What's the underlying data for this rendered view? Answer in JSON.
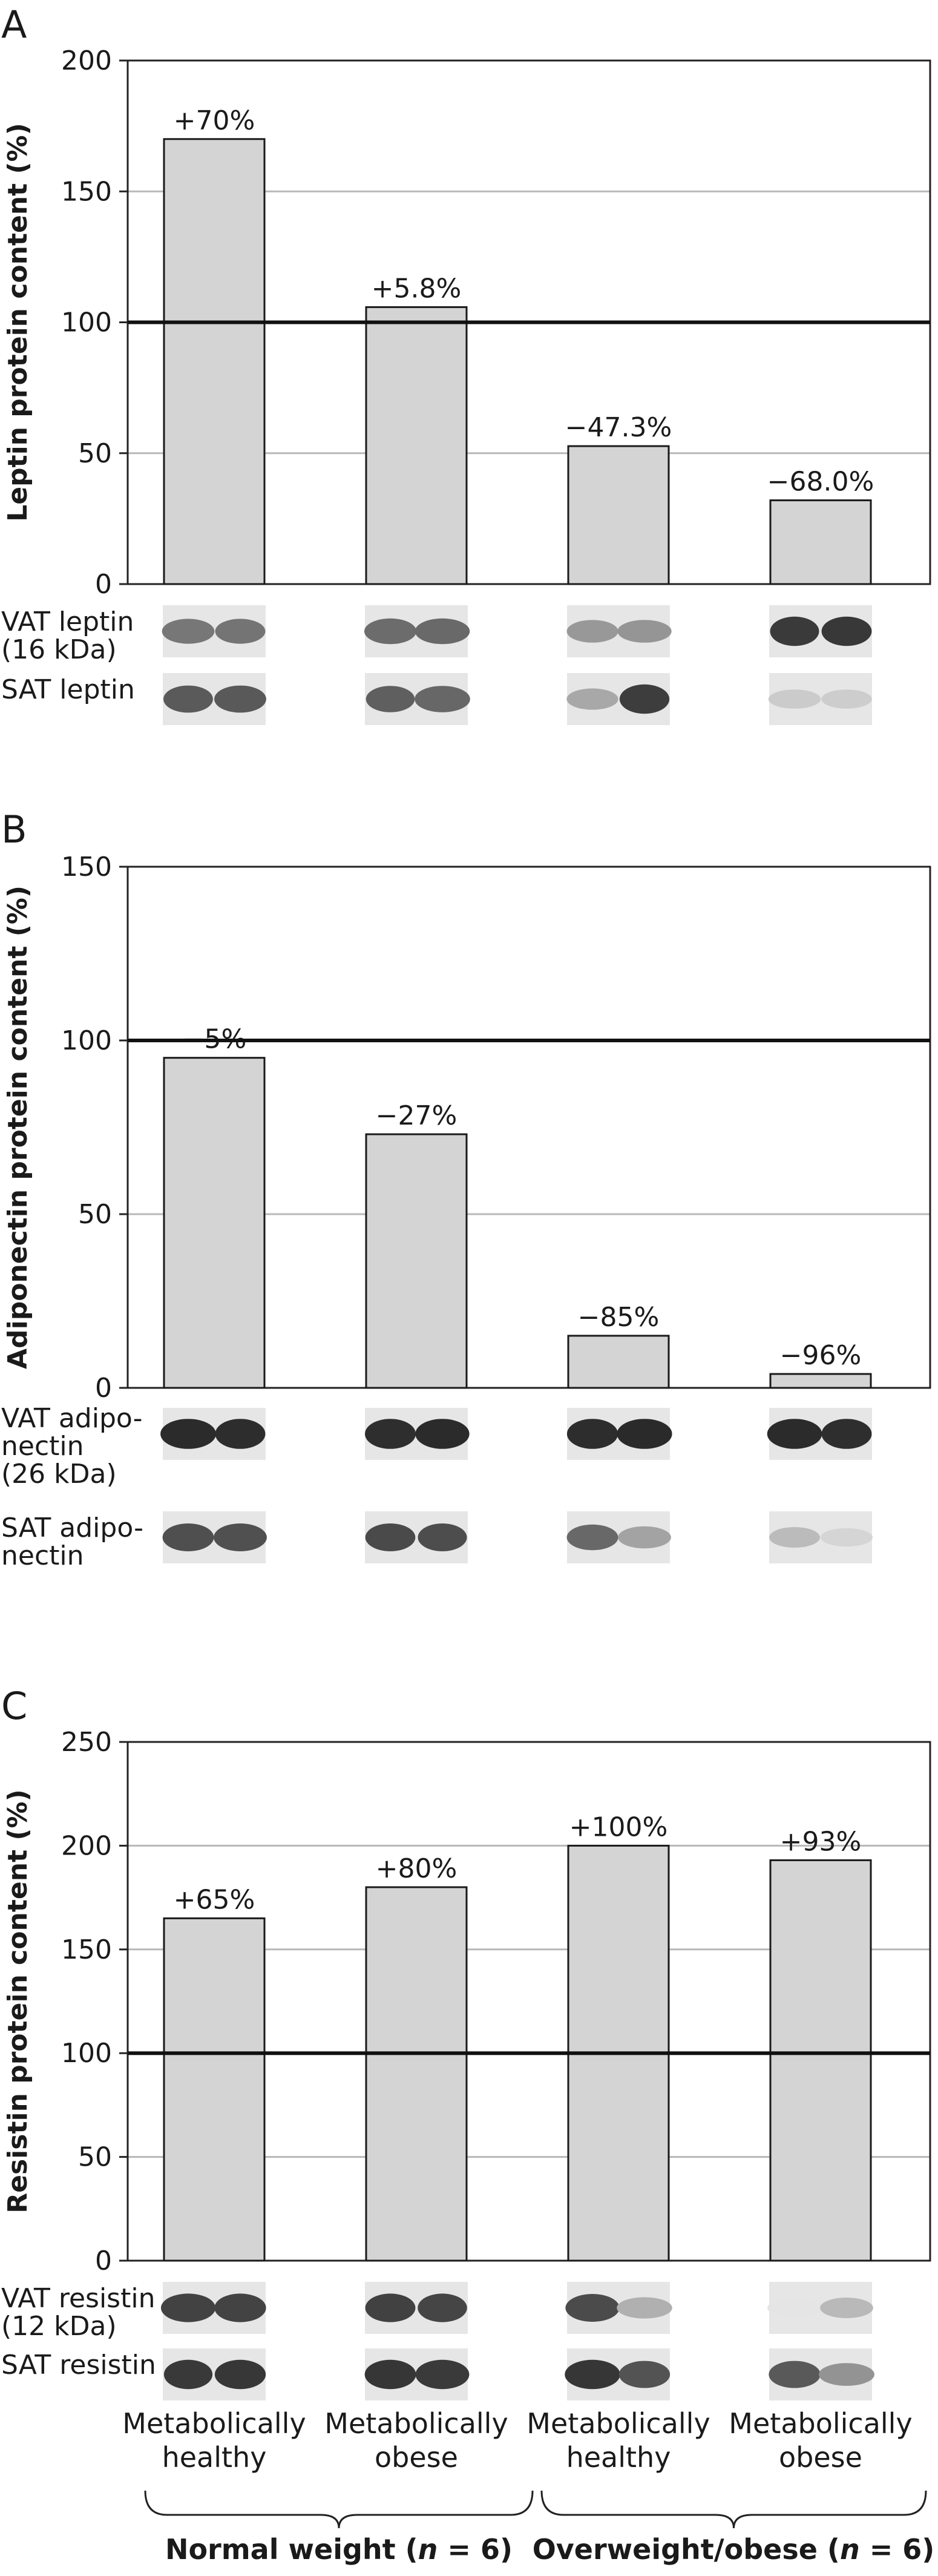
{
  "figure": {
    "group_labels": [
      "Metabolically healthy",
      "Metabolically obese",
      "Metabolically healthy",
      "Metabolically obese"
    ],
    "group_labels_lines": [
      [
        "Metabolically",
        "healthy"
      ],
      [
        "Metabolically",
        "obese"
      ],
      [
        "Metabolically",
        "healthy"
      ],
      [
        "Metabolically",
        "obese"
      ]
    ],
    "brace_labels": {
      "normal": {
        "pre": "Normal weight (",
        "n": "n",
        "post": " = 6)"
      },
      "overweight": {
        "pre": "Overweight/obese (",
        "n": "n",
        "post": " = 6)"
      }
    },
    "colors": {
      "bar_fill": "#d4d4d4",
      "bar_stroke": "#1a1a1a",
      "grid": "#b8b8b8",
      "reference_line": "#111111"
    }
  },
  "chart_data": [
    {
      "panel": "A",
      "type": "bar",
      "ylabel": "Leptin protein content (%)",
      "ylim": [
        0,
        200
      ],
      "yticks": [
        0,
        50,
        100,
        150,
        200
      ],
      "reference_value": 100,
      "categories": [
        "Metabolically healthy",
        "Metabolically obese",
        "Metabolically healthy",
        "Metabolically obese"
      ],
      "values": [
        170,
        105.8,
        52.7,
        32.0
      ],
      "data_labels": [
        "+70%",
        "+5.8%",
        "−47.3%",
        "−68.0%"
      ],
      "blot_labels": [
        [
          "VAT leptin",
          "(16 kDa)"
        ],
        [
          "SAT leptin"
        ]
      ]
    },
    {
      "panel": "B",
      "type": "bar",
      "ylabel": "Adiponectin protein content (%)",
      "ylim": [
        0,
        150
      ],
      "yticks": [
        0,
        50,
        100,
        150
      ],
      "reference_value": 100,
      "categories": [
        "Metabolically healthy",
        "Metabolically obese",
        "Metabolically healthy",
        "Metabolically obese"
      ],
      "values": [
        95,
        73,
        15,
        4
      ],
      "data_labels": [
        "−5%",
        "−27%",
        "−85%",
        "−96%"
      ],
      "blot_labels": [
        [
          "VAT adipo-",
          "nectin",
          "(26 kDa)"
        ],
        [
          "SAT adipo-",
          "nectin"
        ]
      ]
    },
    {
      "panel": "C",
      "type": "bar",
      "ylabel": "Resistin protein content (%)",
      "ylim": [
        0,
        250
      ],
      "yticks": [
        0,
        50,
        100,
        150,
        200,
        250
      ],
      "reference_value": 100,
      "categories": [
        "Metabolically healthy",
        "Metabolically obese",
        "Metabolically healthy",
        "Metabolically obese"
      ],
      "values": [
        165,
        180,
        200,
        193
      ],
      "data_labels": [
        "+65%",
        "+80%",
        "+100%",
        "+93%"
      ],
      "blot_labels": [
        [
          "VAT resistin",
          "(12 kDa)"
        ],
        [
          "SAT resistin"
        ]
      ]
    }
  ]
}
